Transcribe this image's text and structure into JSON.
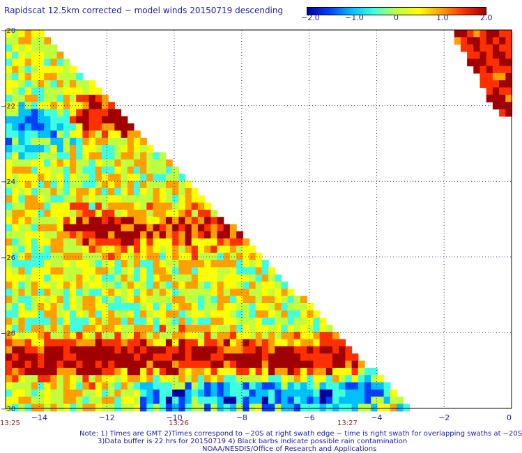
{
  "title": "Rapidscat 12.5km corrected − model winds 20150719 descending",
  "colorbar": {
    "ticks": [
      "−2.0",
      "−1.0",
      "0",
      "1.0",
      "2.0"
    ],
    "tick_values": [
      -2,
      -1,
      0,
      1,
      2
    ],
    "range": [
      -2,
      2
    ],
    "colors": [
      "#0000a0",
      "#0040ff",
      "#00c0ff",
      "#40ffe0",
      "#c0ff40",
      "#ffff00",
      "#ffa000",
      "#ff3000",
      "#a00000"
    ]
  },
  "chart_data": {
    "type": "heatmap",
    "title": "Rapidscat 12.5km corrected − model winds 20150719 descending",
    "xlabel": "",
    "ylabel": "",
    "x_ticks": [
      "−14",
      "−12",
      "−10",
      "−8",
      "−6",
      "−4",
      "−2",
      "0"
    ],
    "x_tick_values": [
      -14,
      -12,
      -10,
      -8,
      -6,
      -4,
      -2,
      0
    ],
    "y_ticks": [
      "−20",
      "−22",
      "−24",
      "−26",
      "−28",
      "−30"
    ],
    "y_tick_values": [
      -20,
      -22,
      -24,
      -26,
      -28,
      -30
    ],
    "xlim": [
      -15,
      0
    ],
    "ylim": [
      -30,
      -20
    ],
    "grid": true,
    "time_labels": [
      {
        "text": "13:25",
        "lon": -15
      },
      {
        "text": "13:26",
        "lon": -10
      },
      {
        "text": "13:27",
        "lon": -5
      }
    ],
    "features": [
      {
        "name": "strong positive band",
        "lat": -28.7,
        "lon_range": [
          -15,
          -5.2
        ],
        "value": 2.0
      },
      {
        "name": "positive band",
        "lat": -25.3,
        "lon_range": [
          -12.5,
          -8.5
        ],
        "value": 1.6
      },
      {
        "name": "positive patch",
        "lat": -22.3,
        "lon_range": [
          -12.3,
          -10.8
        ],
        "value": 2.0
      },
      {
        "name": "negative band",
        "lat": -29.6,
        "lon_range": [
          -10.5,
          -4.5
        ],
        "value": -1.5
      },
      {
        "name": "negative patch",
        "lat": -22.6,
        "lon_range": [
          -15,
          -13.8
        ],
        "value": -1.6
      }
    ]
  },
  "notes": [
    "Note: 1) Times are GMT 2)Times correspond to −20S at right swath edge − time is right swath for overlapping swaths at −20S",
    "3)Data buffer is 22 hrs for 20150719 4) Black barbs indicate possible rain contamination",
    "NOAA/NESDIS/Office of Research and Applications"
  ]
}
